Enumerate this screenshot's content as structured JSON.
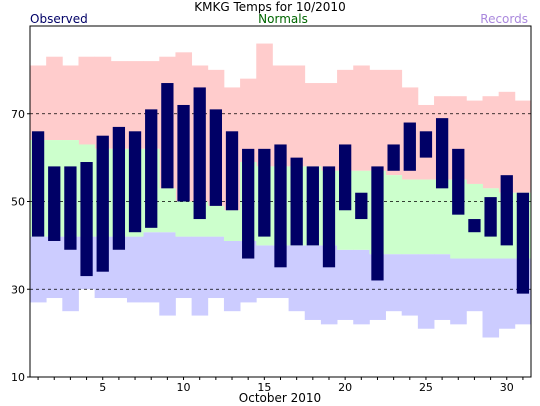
{
  "chart_data": {
    "type": "bar",
    "title": "KMKG Temps for 10/2010",
    "xlabel": "October 2010",
    "ylabel": "",
    "legend": [
      {
        "name": "Observed",
        "color": "#000066"
      },
      {
        "name": "Normals",
        "color": "#006600"
      },
      {
        "name": "Records",
        "color": "#aa88dd"
      }
    ],
    "ylim": [
      10,
      90
    ],
    "xlim": [
      0.5,
      31.5
    ],
    "y_ticks": [
      10,
      30,
      50,
      70
    ],
    "x_ticks": [
      5,
      10,
      15,
      20,
      25,
      30
    ],
    "grid": "dashed horizontal at 30, 50, 70",
    "colors": {
      "observed": "#000066",
      "normal_band": "#ccffcc",
      "record_high_band": "#ffcccc",
      "record_low_band": "#ccccff"
    },
    "days": [
      1,
      2,
      3,
      4,
      5,
      6,
      7,
      8,
      9,
      10,
      11,
      12,
      13,
      14,
      15,
      16,
      17,
      18,
      19,
      20,
      21,
      22,
      23,
      24,
      25,
      26,
      27,
      28,
      29,
      30,
      31
    ],
    "record_high": [
      81,
      83,
      81,
      83,
      83,
      82,
      82,
      82,
      83,
      84,
      81,
      80,
      76,
      78,
      86,
      81,
      81,
      77,
      77,
      80,
      81,
      80,
      80,
      76,
      72,
      74,
      74,
      73,
      74,
      75,
      73
    ],
    "record_low": [
      27,
      28,
      25,
      30,
      28,
      28,
      27,
      27,
      24,
      28,
      24,
      28,
      25,
      27,
      28,
      28,
      25,
      23,
      22,
      23,
      22,
      23,
      25,
      24,
      21,
      23,
      22,
      25,
      19,
      21,
      22
    ],
    "normal_high": [
      64,
      64,
      64,
      63,
      62,
      62,
      62,
      62,
      53,
      50,
      50,
      49,
      48,
      59,
      58,
      58,
      58,
      58,
      57,
      57,
      57,
      57,
      56,
      55,
      55,
      55,
      55,
      54,
      53,
      52,
      52
    ],
    "normal_low": [
      42,
      42,
      42,
      42,
      42,
      42,
      42,
      43,
      43,
      42,
      42,
      42,
      41,
      41,
      40,
      40,
      40,
      40,
      40,
      39,
      39,
      38,
      38,
      38,
      38,
      38,
      37,
      37,
      37,
      37,
      37
    ],
    "observed_high": [
      66,
      58,
      58,
      59,
      65,
      67,
      66,
      71,
      77,
      72,
      76,
      71,
      66,
      62,
      62,
      63,
      60,
      58,
      58,
      63,
      52,
      58,
      63,
      68,
      66,
      69,
      62,
      46,
      51,
      56,
      52
    ],
    "observed_low": [
      42,
      41,
      39,
      33,
      34,
      39,
      43,
      44,
      53,
      50,
      46,
      49,
      48,
      37,
      42,
      35,
      40,
      40,
      35,
      48,
      46,
      32,
      57,
      57,
      60,
      53,
      47,
      43,
      42,
      40,
      29
    ]
  }
}
